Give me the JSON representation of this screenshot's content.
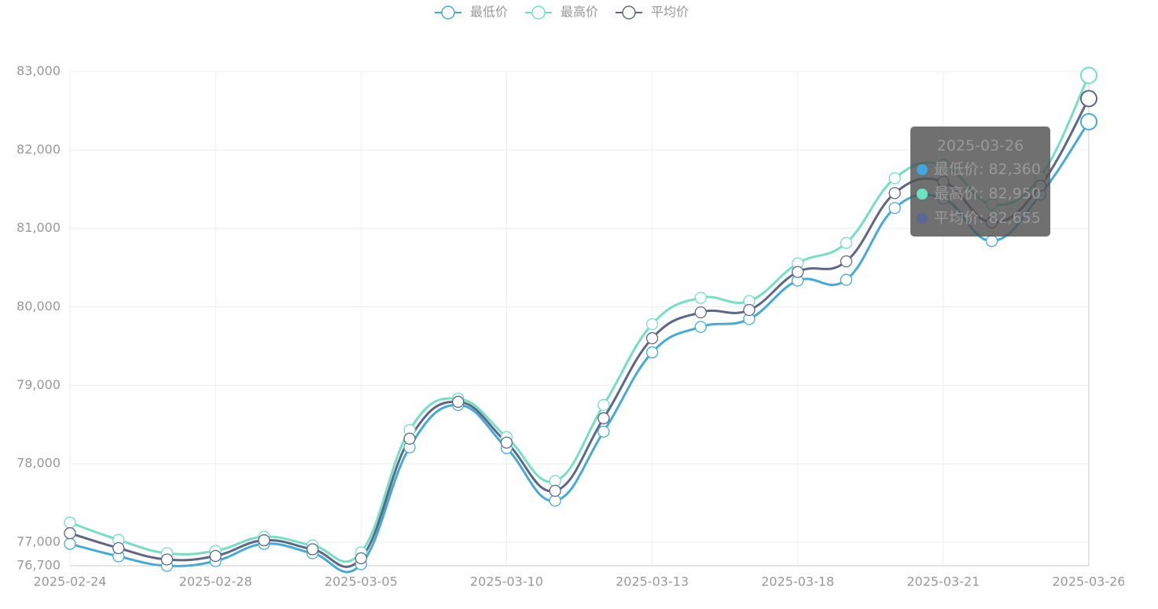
{
  "chart_data": {
    "type": "line",
    "categories": [
      "2025-02-24",
      null,
      null,
      "2025-02-28",
      null,
      null,
      "2025-03-05",
      null,
      null,
      "2025-03-10",
      null,
      null,
      "2025-03-13",
      null,
      null,
      "2025-03-18",
      null,
      null,
      "2025-03-21",
      null,
      null,
      "2025-03-26"
    ],
    "series": [
      {
        "name": "最低价",
        "color": "#45abd6",
        "values": [
          76980,
          76820,
          76700,
          76760,
          76980,
          76860,
          76720,
          78210,
          78750,
          78200,
          77530,
          78410,
          79420,
          79745,
          79845,
          80335,
          80345,
          81260,
          81380,
          80840,
          81430,
          82360
        ]
      },
      {
        "name": "最高价",
        "color": "#74dfc3",
        "values": [
          77250,
          77030,
          76860,
          76890,
          77070,
          76960,
          76870,
          78430,
          78830,
          78340,
          77780,
          78750,
          79780,
          80115,
          80075,
          80555,
          80815,
          81640,
          81810,
          81310,
          81660,
          82950
        ]
      },
      {
        "name": "平均价",
        "color": "#5e6886",
        "values": [
          77115,
          76925,
          76780,
          76825,
          77025,
          76910,
          76795,
          78320,
          78790,
          78270,
          77655,
          78580,
          79600,
          79930,
          79960,
          80445,
          80580,
          81450,
          81595,
          81075,
          81545,
          82655
        ]
      }
    ],
    "ylim": [
      76700,
      83000
    ],
    "yticks": [
      {
        "value": 76700,
        "label": "76,700"
      },
      {
        "value": 77000,
        "label": "77,000"
      },
      {
        "value": 78000,
        "label": "78,000"
      },
      {
        "value": 79000,
        "label": "79,000"
      },
      {
        "value": 80000,
        "label": "80,000"
      },
      {
        "value": 81000,
        "label": "81,000"
      },
      {
        "value": 82000,
        "label": "82,000"
      },
      {
        "value": 83000,
        "label": "83,000"
      }
    ],
    "grid": true,
    "legend": "top",
    "smooth": true,
    "tooltip": {
      "title": "2025-03-26",
      "rows": [
        "最低价: 82,360",
        "最高价: 82,950",
        "平均价: 82,655"
      ],
      "colors": [
        "#3fa7dc",
        "#6ae3c0",
        "#5a6795"
      ]
    }
  }
}
